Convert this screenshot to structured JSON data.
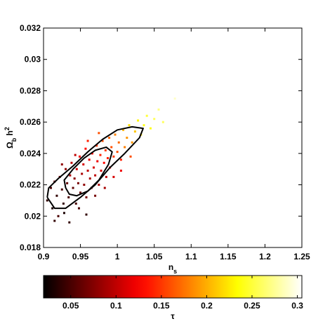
{
  "chart_data": {
    "type": "scatter",
    "xlabel": [
      {
        "text": "n"
      },
      {
        "text": "s",
        "style": "sub"
      }
    ],
    "ylabel": [
      {
        "text": "Ω"
      },
      {
        "text": "b",
        "style": "sub"
      },
      {
        "text": " h"
      },
      {
        "text": "2",
        "style": "sup"
      }
    ],
    "xlim": [
      0.9,
      1.25
    ],
    "ylim": [
      0.018,
      0.032
    ],
    "xticks": [
      0.9,
      0.95,
      1,
      1.05,
      1.1,
      1.15,
      1.2,
      1.25
    ],
    "yticks": [
      0.018,
      0.02,
      0.022,
      0.024,
      0.026,
      0.028,
      0.03,
      0.032
    ],
    "colormap": "hot",
    "colorbar": {
      "label": "τ",
      "clim": [
        0.02,
        0.305
      ],
      "ticks": [
        0.05,
        0.1,
        0.15,
        0.2,
        0.25,
        0.3
      ]
    },
    "x": [
      0.905,
      0.91,
      0.912,
      0.915,
      0.918,
      0.92,
      0.922,
      0.925,
      0.927,
      0.93,
      0.932,
      0.934,
      0.936,
      0.938,
      0.94,
      0.942,
      0.944,
      0.945,
      0.947,
      0.949,
      0.95,
      0.952,
      0.954,
      0.955,
      0.957,
      0.958,
      0.96,
      0.962,
      0.963,
      0.965,
      0.966,
      0.968,
      0.97,
      0.972,
      0.973,
      0.975,
      0.977,
      0.978,
      0.98,
      0.982,
      0.984,
      0.985,
      0.987,
      0.989,
      0.99,
      0.992,
      0.995,
      0.997,
      1.0,
      1.002,
      1.005,
      1.008,
      1.01,
      1.013,
      1.016,
      1.02,
      1.024,
      1.028,
      1.032,
      1.036,
      1.04,
      1.045,
      1.05,
      1.056,
      1.062,
      1.078,
      0.915,
      0.928,
      0.935,
      0.948,
      0.958,
      0.943,
      0.925,
      0.97,
      0.983,
      0.995,
      1.005,
      0.96,
      0.975,
      1.018
    ],
    "y": [
      0.021,
      0.0218,
      0.0205,
      0.0222,
      0.0213,
      0.02,
      0.0225,
      0.0217,
      0.0208,
      0.023,
      0.0221,
      0.0212,
      0.0226,
      0.0234,
      0.0218,
      0.0224,
      0.0208,
      0.023,
      0.0221,
      0.0238,
      0.0215,
      0.0227,
      0.0233,
      0.022,
      0.0243,
      0.0212,
      0.0229,
      0.0236,
      0.0224,
      0.0218,
      0.024,
      0.0231,
      0.0226,
      0.0245,
      0.0235,
      0.022,
      0.0239,
      0.0229,
      0.0248,
      0.0234,
      0.0242,
      0.0225,
      0.0237,
      0.025,
      0.0231,
      0.0244,
      0.0238,
      0.0252,
      0.0241,
      0.0247,
      0.0236,
      0.0255,
      0.0244,
      0.025,
      0.0258,
      0.0247,
      0.0254,
      0.0261,
      0.0252,
      0.0258,
      0.0264,
      0.0256,
      0.0262,
      0.0268,
      0.026,
      0.0275,
      0.0197,
      0.0202,
      0.0196,
      0.0205,
      0.0201,
      0.0239,
      0.0233,
      0.0213,
      0.0218,
      0.0225,
      0.0229,
      0.0248,
      0.0253,
      0.0238
    ],
    "c": [
      0.04,
      0.05,
      0.03,
      0.06,
      0.04,
      0.05,
      0.07,
      0.05,
      0.04,
      0.08,
      0.06,
      0.05,
      0.09,
      0.1,
      0.06,
      0.08,
      0.05,
      0.11,
      0.07,
      0.12,
      0.06,
      0.09,
      0.11,
      0.08,
      0.13,
      0.07,
      0.1,
      0.12,
      0.09,
      0.08,
      0.13,
      0.11,
      0.1,
      0.15,
      0.12,
      0.09,
      0.14,
      0.11,
      0.16,
      0.13,
      0.15,
      0.1,
      0.14,
      0.17,
      0.12,
      0.16,
      0.15,
      0.18,
      0.16,
      0.17,
      0.14,
      0.2,
      0.18,
      0.19,
      0.22,
      0.19,
      0.21,
      0.23,
      0.22,
      0.24,
      0.25,
      0.24,
      0.26,
      0.27,
      0.26,
      0.29,
      0.04,
      0.03,
      0.04,
      0.05,
      0.04,
      0.1,
      0.08,
      0.07,
      0.09,
      0.11,
      0.12,
      0.14,
      0.16,
      0.16
    ],
    "contours": [
      {
        "color": "#000000",
        "x": [
          0.93,
          0.935,
          0.945,
          0.96,
          0.975,
          0.988,
          0.993,
          0.985,
          0.97,
          0.955,
          0.94,
          0.928,
          0.93
        ],
        "y": [
          0.0218,
          0.0214,
          0.0213,
          0.0216,
          0.0223,
          0.0233,
          0.0241,
          0.0244,
          0.0242,
          0.0237,
          0.023,
          0.0223,
          0.0218
        ]
      },
      {
        "color": "#000000",
        "x": [
          0.905,
          0.915,
          0.93,
          0.95,
          0.97,
          0.99,
          1.01,
          1.03,
          1.035,
          1.02,
          1.0,
          0.98,
          0.96,
          0.94,
          0.92,
          0.907,
          0.905
        ],
        "y": [
          0.0212,
          0.0205,
          0.0205,
          0.0212,
          0.022,
          0.0231,
          0.024,
          0.025,
          0.0256,
          0.0257,
          0.0255,
          0.0249,
          0.0241,
          0.0232,
          0.0224,
          0.0218,
          0.0212
        ]
      }
    ]
  }
}
